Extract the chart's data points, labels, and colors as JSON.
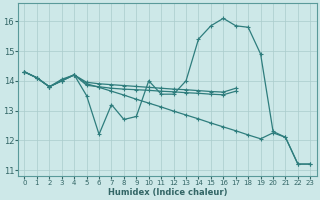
{
  "xlabel": "Humidex (Indice chaleur)",
  "bg_color": "#cde8e8",
  "grid_color": "#aacccc",
  "line_color": "#2e7d7d",
  "xlim": [
    -0.5,
    23.5
  ],
  "ylim": [
    10.8,
    16.6
  ],
  "yticks": [
    11,
    12,
    13,
    14,
    15,
    16
  ],
  "xticks": [
    0,
    1,
    2,
    3,
    4,
    5,
    6,
    7,
    8,
    9,
    10,
    11,
    12,
    13,
    14,
    15,
    16,
    17,
    18,
    19,
    20,
    21,
    22,
    23
  ],
  "lines": [
    {
      "x": [
        0,
        1,
        2,
        3,
        4,
        5,
        6,
        7,
        8,
        9,
        10,
        11,
        12,
        13,
        14,
        15,
        16,
        17,
        18,
        19,
        20,
        21,
        22,
        23
      ],
      "y": [
        14.3,
        14.1,
        13.8,
        14.0,
        14.2,
        13.5,
        12.2,
        13.2,
        12.7,
        12.8,
        14.0,
        13.55,
        13.55,
        14.0,
        15.4,
        15.85,
        16.1,
        15.85,
        15.8,
        14.9,
        12.3,
        12.1,
        11.2,
        11.2
      ]
    },
    {
      "x": [
        0,
        1,
        2,
        3,
        4,
        5,
        6,
        7,
        8,
        9,
        10,
        11,
        12,
        13,
        14,
        15,
        16,
        17
      ],
      "y": [
        14.3,
        14.1,
        13.8,
        14.0,
        14.2,
        13.85,
        13.8,
        13.75,
        13.72,
        13.7,
        13.68,
        13.65,
        13.63,
        13.6,
        13.58,
        13.55,
        13.53,
        13.65
      ]
    },
    {
      "x": [
        0,
        1,
        2,
        3,
        4,
        5,
        6,
        7,
        8,
        9,
        10,
        11,
        12,
        13,
        14,
        15,
        16,
        17
      ],
      "y": [
        14.3,
        14.1,
        13.8,
        14.05,
        14.2,
        13.95,
        13.9,
        13.87,
        13.84,
        13.81,
        13.78,
        13.75,
        13.72,
        13.7,
        13.67,
        13.64,
        13.62,
        13.75
      ]
    },
    {
      "x": [
        0,
        1,
        2,
        3,
        4,
        5,
        6,
        7,
        8,
        9,
        10,
        11,
        12,
        13,
        14,
        15,
        16,
        17,
        18,
        19,
        20,
        21,
        22,
        23
      ],
      "y": [
        14.3,
        14.1,
        13.8,
        14.0,
        14.2,
        13.9,
        13.78,
        13.65,
        13.52,
        13.38,
        13.25,
        13.12,
        12.98,
        12.85,
        12.72,
        12.58,
        12.45,
        12.32,
        12.18,
        12.05,
        12.25,
        12.1,
        11.2,
        11.2
      ]
    }
  ]
}
